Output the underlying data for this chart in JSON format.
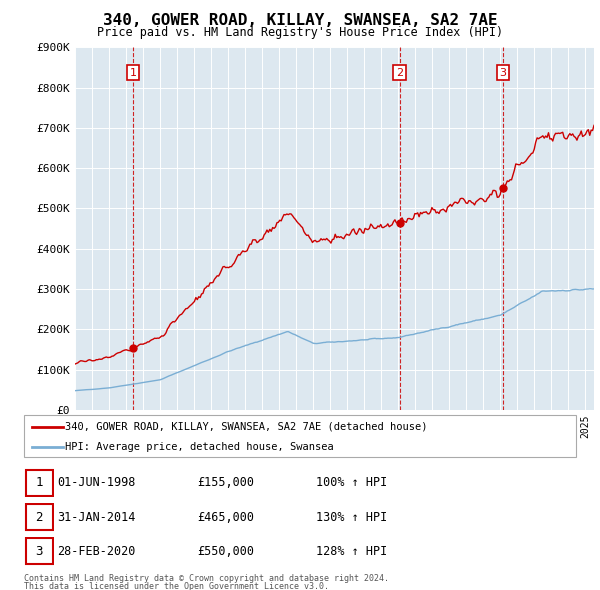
{
  "title": "340, GOWER ROAD, KILLAY, SWANSEA, SA2 7AE",
  "subtitle": "Price paid vs. HM Land Registry's House Price Index (HPI)",
  "legend_label_red": "340, GOWER ROAD, KILLAY, SWANSEA, SA2 7AE (detached house)",
  "legend_label_blue": "HPI: Average price, detached house, Swansea",
  "footer_line1": "Contains HM Land Registry data © Crown copyright and database right 2024.",
  "footer_line2": "This data is licensed under the Open Government Licence v3.0.",
  "sale_prices": [
    155000,
    465000,
    550000
  ],
  "sale_years": [
    1998.42,
    2014.08,
    2020.16
  ],
  "table_rows": [
    [
      "1",
      "01-JUN-1998",
      "£155,000",
      "100% ↑ HPI"
    ],
    [
      "2",
      "31-JAN-2014",
      "£465,000",
      "130% ↑ HPI"
    ],
    [
      "3",
      "28-FEB-2020",
      "£550,000",
      "128% ↑ HPI"
    ]
  ],
  "ylim": [
    0,
    900000
  ],
  "yticks": [
    0,
    100000,
    200000,
    300000,
    400000,
    500000,
    600000,
    700000,
    800000,
    900000
  ],
  "xlim_start": 1995.0,
  "xlim_end": 2025.5,
  "plot_bg_color": "#dde8f0",
  "background_color": "#ffffff",
  "grid_color": "#ffffff",
  "red_color": "#cc0000",
  "blue_color": "#7aaed4"
}
